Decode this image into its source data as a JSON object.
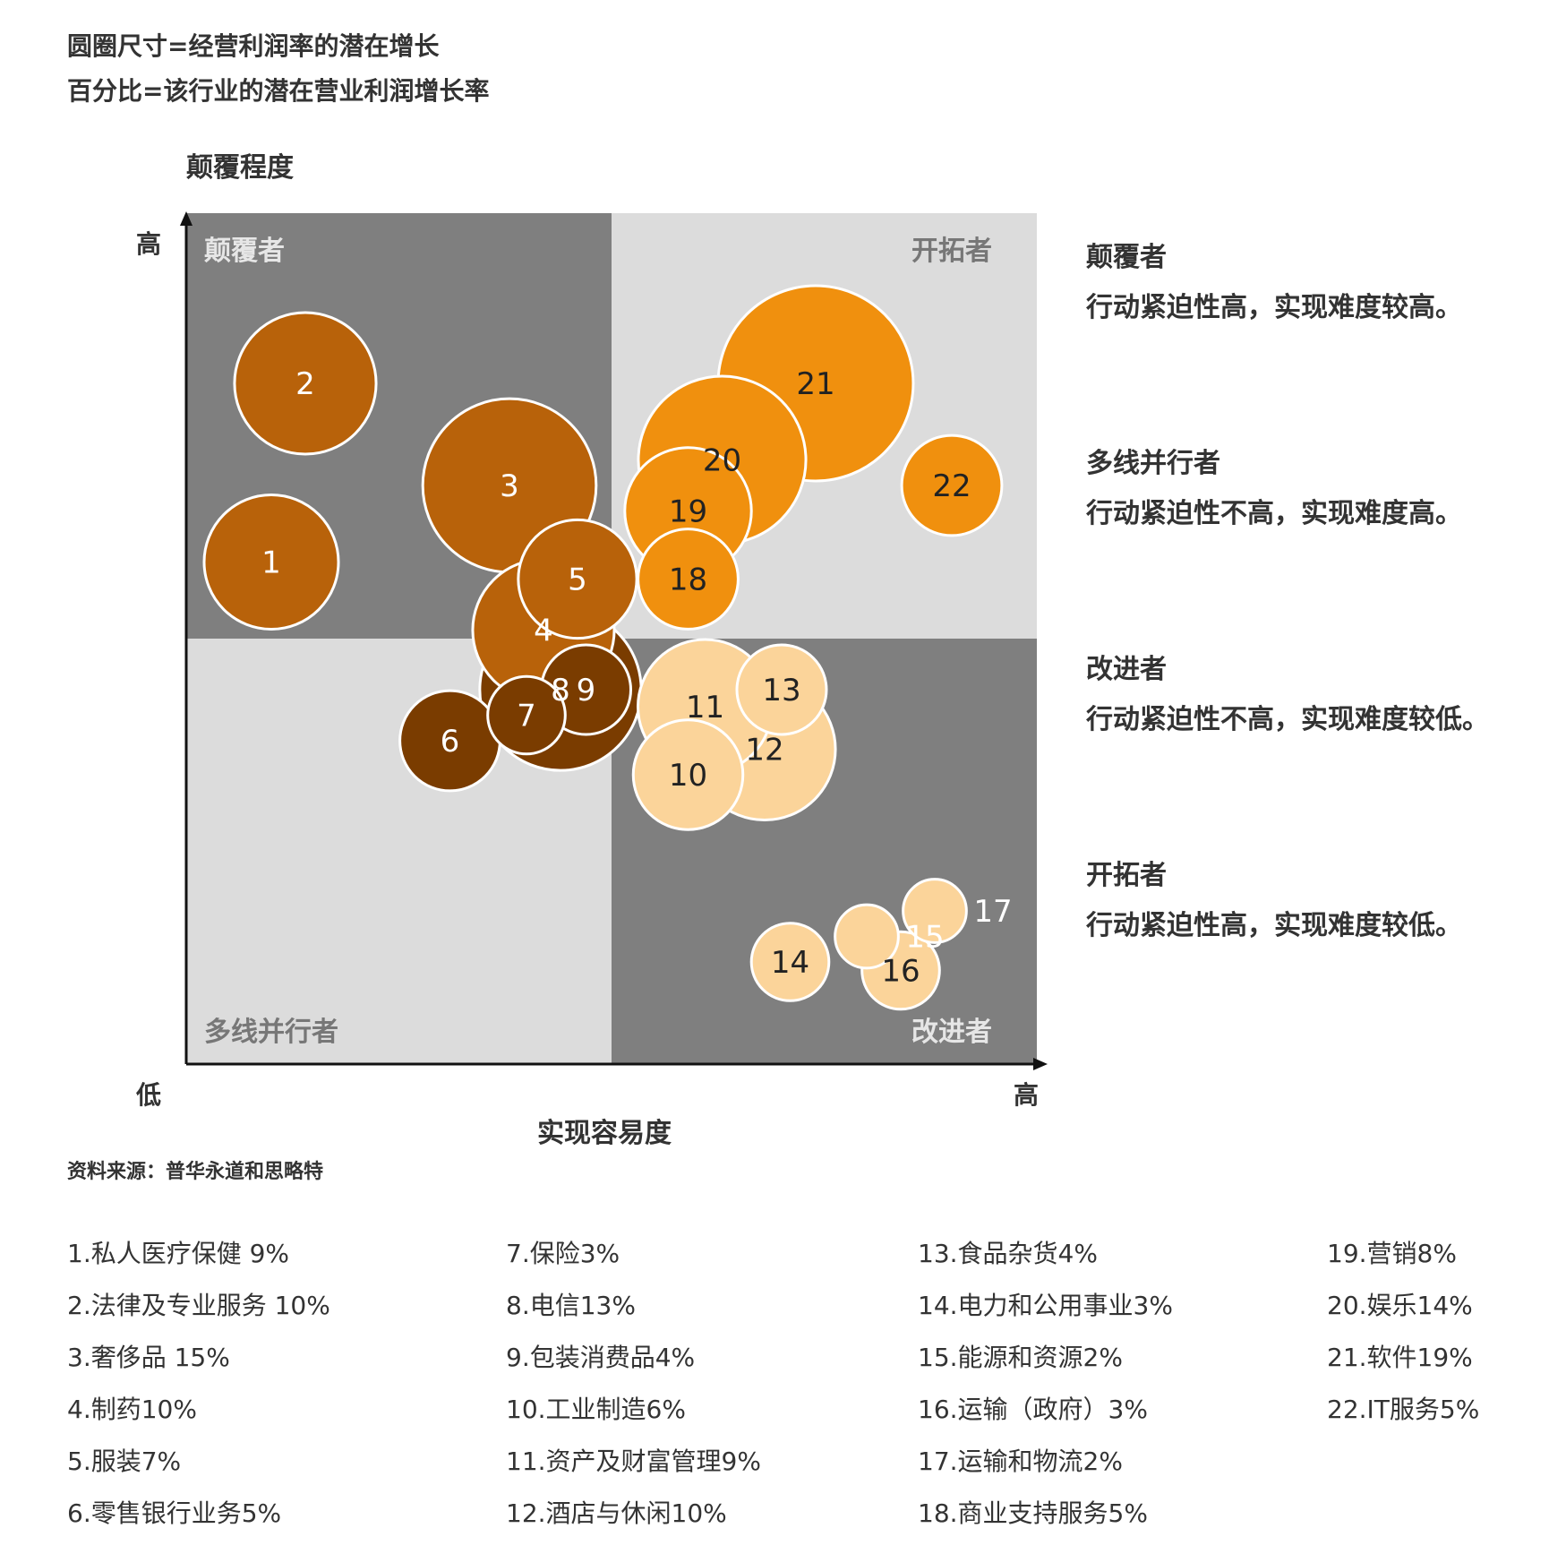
{
  "header": {
    "line1": "圆圈尺寸=经营利润率的潜在增长",
    "line2": "百分比=该行业的潜在营业利润增长率"
  },
  "chart_data": {
    "type": "scatter",
    "y_axis_label": "颠覆程度",
    "x_axis_label": "实现容易度",
    "y_high": "高",
    "x_low": "低",
    "x_high": "高",
    "quadrants": {
      "top_left": "颠覆者",
      "top_right": "开拓者",
      "bottom_left": "多线并行者",
      "bottom_right": "改进者"
    },
    "points": [
      {
        "id": "1",
        "x": 0.1,
        "y": 0.59,
        "size": 9,
        "color": "#b8620a"
      },
      {
        "id": "2",
        "x": 0.14,
        "y": 0.8,
        "size": 10,
        "color": "#b8620a"
      },
      {
        "id": "3",
        "x": 0.38,
        "y": 0.68,
        "size": 15,
        "color": "#b8620a"
      },
      {
        "id": "4",
        "x": 0.42,
        "y": 0.51,
        "size": 10,
        "color": "#b8620a"
      },
      {
        "id": "5",
        "x": 0.46,
        "y": 0.57,
        "size": 7,
        "color": "#b8620a"
      },
      {
        "id": "6",
        "x": 0.31,
        "y": 0.38,
        "size": 5,
        "color": "#7a3c00"
      },
      {
        "id": "7",
        "x": 0.4,
        "y": 0.41,
        "size": 3,
        "color": "#7a3c00"
      },
      {
        "id": "8",
        "x": 0.44,
        "y": 0.44,
        "size": 13,
        "color": "#7a3c00"
      },
      {
        "id": "9",
        "x": 0.47,
        "y": 0.44,
        "size": 4,
        "color": "#7a3c00"
      },
      {
        "id": "10",
        "x": 0.59,
        "y": 0.34,
        "size": 6,
        "color": "#fbd49a"
      },
      {
        "id": "11",
        "x": 0.61,
        "y": 0.42,
        "size": 9,
        "color": "#fbd49a"
      },
      {
        "id": "12",
        "x": 0.68,
        "y": 0.37,
        "size": 10,
        "color": "#fbd49a"
      },
      {
        "id": "13",
        "x": 0.7,
        "y": 0.44,
        "size": 4,
        "color": "#fbd49a"
      },
      {
        "id": "14",
        "x": 0.71,
        "y": 0.12,
        "size": 3,
        "color": "#fbd49a"
      },
      {
        "id": "15",
        "x": 0.8,
        "y": 0.15,
        "size": 2,
        "color": "#fbd49a"
      },
      {
        "id": "16",
        "x": 0.84,
        "y": 0.11,
        "size": 3,
        "color": "#fbd49a"
      },
      {
        "id": "17",
        "x": 0.88,
        "y": 0.18,
        "size": 2,
        "color": "#fbd49a"
      },
      {
        "id": "18",
        "x": 0.59,
        "y": 0.57,
        "size": 5,
        "color": "#f0900e"
      },
      {
        "id": "19",
        "x": 0.59,
        "y": 0.65,
        "size": 8,
        "color": "#f0900e"
      },
      {
        "id": "20",
        "x": 0.63,
        "y": 0.71,
        "size": 14,
        "color": "#f0900e"
      },
      {
        "id": "21",
        "x": 0.74,
        "y": 0.8,
        "size": 19,
        "color": "#f0900e"
      },
      {
        "id": "22",
        "x": 0.9,
        "y": 0.68,
        "size": 5,
        "color": "#f0900e"
      }
    ]
  },
  "descriptions": [
    {
      "title": "颠覆者",
      "text": "行动紧迫性高，实现难度较高。"
    },
    {
      "title": "多线并行者",
      "text": "行动紧迫性不高，实现难度高。"
    },
    {
      "title": "改进者",
      "text": "行动紧迫性不高，实现难度较低。"
    },
    {
      "title": "开拓者",
      "text": "行动紧迫性高，实现难度较低。"
    }
  ],
  "source": "资料来源：普华永道和思略特",
  "legend": [
    [
      "1.私人医疗保健 9%",
      "2.法律及专业服务 10%",
      "3.奢侈品 15%",
      "4.制药10%",
      "5.服装7%",
      "6.零售银行业务5%"
    ],
    [
      "7.保险3%",
      "8.电信13%",
      "9.包装消费品4%",
      "10.工业制造6%",
      "11.资产及财富管理9%",
      "12.酒店与休闲10%"
    ],
    [
      "13.食品杂货4%",
      "14.电力和公用事业3%",
      "15.能源和资源2%",
      "16.运输（政府）3%",
      "17.运输和物流2%",
      "18.商业支持服务5%"
    ],
    [
      "19.营销8%",
      "20.娱乐14%",
      "21.软件19%",
      "22.IT服务5%"
    ]
  ]
}
